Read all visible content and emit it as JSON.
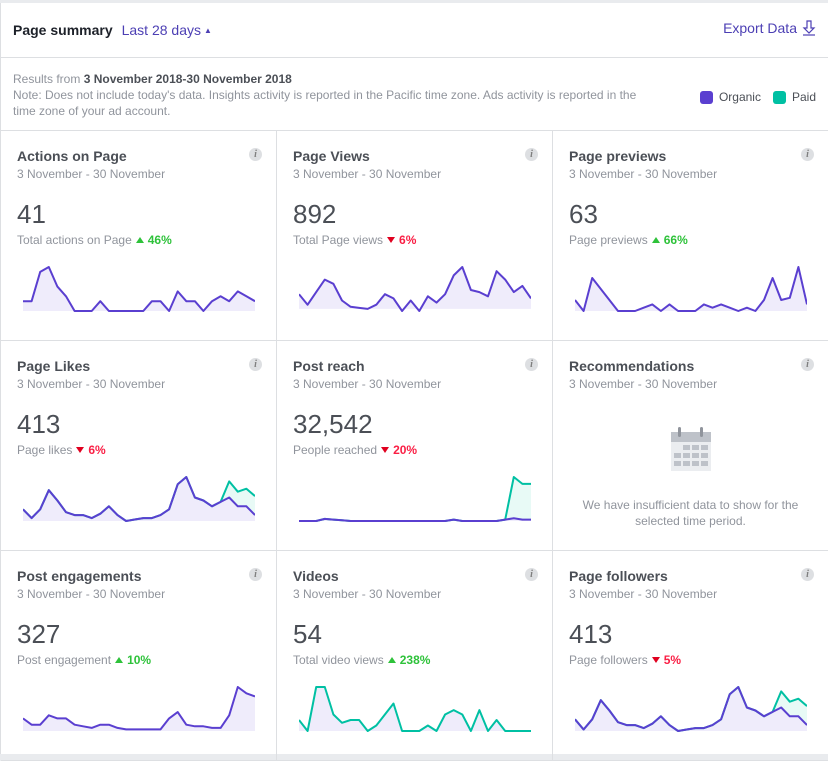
{
  "header": {
    "title": "Page summary",
    "range": "Last 28 days",
    "export_label": "Export Data"
  },
  "notice": {
    "results_prefix": "Results from",
    "results_range": "3 November 2018-30 November 2018",
    "note": "Note: Does not include today's data. Insights activity is reported in the Pacific time zone. Ads activity is reported in the time zone of your ad account."
  },
  "legend": {
    "organic_label": "Organic",
    "paid_label": "Paid",
    "organic_color": "#5a3fd0",
    "paid_color": "#00c0a3"
  },
  "cards": [
    {
      "title": "Actions on Page",
      "date": "3 November - 30 November",
      "value": "41",
      "sublabel": "Total actions on Page",
      "change": "46%",
      "direction": "up"
    },
    {
      "title": "Page Views",
      "date": "3 November - 30 November",
      "value": "892",
      "sublabel": "Total Page views",
      "change": "6%",
      "direction": "down"
    },
    {
      "title": "Page previews",
      "date": "3 November - 30 November",
      "value": "63",
      "sublabel": "Page previews",
      "change": "66%",
      "direction": "up"
    },
    {
      "title": "Page Likes",
      "date": "3 November - 30 November",
      "value": "413",
      "sublabel": "Page likes",
      "change": "6%",
      "direction": "down"
    },
    {
      "title": "Post reach",
      "date": "3 November - 30 November",
      "value": "32,542",
      "sublabel": "People reached",
      "change": "20%",
      "direction": "down"
    },
    {
      "title": "Recommendations",
      "date": "3 November - 30 November",
      "empty_message": "We have insufficient data to show for the selected time period."
    },
    {
      "title": "Post engagements",
      "date": "3 November - 30 November",
      "value": "327",
      "sublabel": "Post engagement",
      "change": "10%",
      "direction": "up"
    },
    {
      "title": "Videos",
      "date": "3 November - 30 November",
      "value": "54",
      "sublabel": "Total video views",
      "change": "238%",
      "direction": "up"
    },
    {
      "title": "Page followers",
      "date": "3 November - 30 November",
      "value": "413",
      "sublabel": "Page followers",
      "change": "5%",
      "direction": "down"
    }
  ],
  "chart_data": [
    {
      "type": "area",
      "title": "Actions on Page",
      "series": [
        {
          "name": "Organic",
          "values": [
            1,
            1,
            4,
            4.5,
            2.5,
            1.5,
            0,
            0,
            0,
            1,
            0,
            0,
            0,
            0,
            0,
            1,
            1,
            0,
            2,
            1,
            1,
            0,
            1,
            1.5,
            1,
            2,
            1.5,
            1
          ]
        }
      ]
    },
    {
      "type": "area",
      "title": "Page Views",
      "series": [
        {
          "name": "Organic",
          "values": [
            14,
            4,
            16,
            28,
            24,
            8,
            2,
            1,
            0,
            4,
            14,
            10,
            -2,
            8,
            -2,
            12,
            6,
            14,
            32,
            40,
            18,
            16,
            12,
            36,
            28,
            16,
            22,
            10
          ]
        }
      ]
    },
    {
      "type": "area",
      "title": "Page previews",
      "series": [
        {
          "name": "Organic",
          "values": [
            1,
            0,
            3,
            2,
            1,
            0,
            0,
            0,
            0.3,
            0.6,
            0,
            0.6,
            0,
            0,
            0,
            0.6,
            0.3,
            0.6,
            0.3,
            0,
            0.3,
            0,
            1,
            3,
            1,
            1.2,
            4,
            0.6
          ]
        }
      ]
    },
    {
      "type": "area",
      "title": "Page Likes",
      "series": [
        {
          "name": "Organic",
          "values": [
            8,
            2,
            8,
            21,
            14,
            6,
            4,
            4,
            2,
            5,
            10,
            4,
            0,
            1,
            2,
            2,
            4,
            8,
            25,
            30,
            16,
            14,
            10,
            13,
            16,
            10,
            10,
            4
          ]
        },
        {
          "name": "Paid",
          "values": [
            0,
            0,
            0,
            0,
            0,
            0,
            0,
            0,
            0,
            0,
            0,
            0,
            0,
            0,
            0,
            0,
            0,
            0,
            0,
            0,
            0,
            0,
            0,
            0,
            11,
            10,
            12,
            13
          ]
        }
      ]
    },
    {
      "type": "area",
      "title": "Post reach",
      "series": [
        {
          "name": "Organic",
          "values": [
            0,
            0,
            0,
            0.3,
            0.2,
            0.1,
            0,
            0,
            0,
            0,
            0,
            0,
            0,
            0,
            0,
            0,
            0,
            0,
            0.2,
            0,
            0,
            0,
            0,
            0,
            0.2,
            0.4,
            0.2,
            0.2
          ]
        },
        {
          "name": "Paid",
          "values": [
            0,
            0,
            0,
            0,
            0,
            0,
            0,
            0,
            0,
            0,
            0,
            0,
            0,
            0,
            0,
            0,
            0,
            0,
            0,
            0,
            0,
            0,
            0,
            0,
            0,
            6,
            5.2,
            5.2
          ]
        }
      ]
    },
    {
      "type": "area",
      "title": "Post engagements",
      "series": [
        {
          "name": "Organic",
          "values": [
            4,
            2,
            2,
            5,
            4,
            4,
            2,
            1.5,
            1,
            2,
            2,
            1,
            0.5,
            0.5,
            0.5,
            0.5,
            0.5,
            4,
            6,
            2,
            1.5,
            1.5,
            1,
            1,
            5,
            14,
            12,
            11
          ]
        }
      ]
    },
    {
      "type": "area",
      "title": "Videos",
      "series": [
        {
          "name": "Paid",
          "values": [
            2,
            0,
            8,
            8,
            3,
            1.5,
            2,
            2,
            0,
            1,
            3,
            5,
            0,
            0,
            0,
            1,
            0,
            3,
            3.8,
            3,
            0,
            3.8,
            0,
            2,
            0,
            0,
            0,
            0
          ]
        }
      ]
    },
    {
      "type": "area",
      "title": "Page followers",
      "series": [
        {
          "name": "Organic",
          "values": [
            8,
            1,
            8,
            21,
            14,
            6,
            4,
            4,
            2,
            5,
            10,
            4,
            0,
            1,
            2,
            2,
            4,
            8,
            25,
            30,
            16,
            14,
            10,
            13,
            16,
            10,
            10,
            4
          ]
        },
        {
          "name": "Paid",
          "values": [
            0,
            0,
            0,
            0,
            0,
            0,
            0,
            0,
            0,
            0,
            0,
            0,
            0,
            0,
            0,
            0,
            0,
            0,
            0,
            0,
            0,
            0,
            0,
            0,
            11,
            10,
            12,
            13
          ]
        }
      ]
    }
  ]
}
